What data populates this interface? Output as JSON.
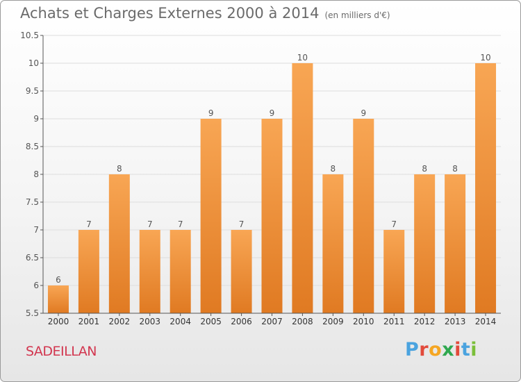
{
  "header": {
    "title": "Achats et Charges Externes 2000 à 2014",
    "subtitle": "(en milliers d'€)"
  },
  "footer": {
    "commune": "SADEILLAN",
    "logo_text": "Proxiti"
  },
  "colors": {
    "bar_top": "#f8a654",
    "bar_bottom": "#e07a22",
    "axis": "#555555",
    "grid": "#dddddd",
    "title": "#6a6a6a",
    "commune": "#d2364f",
    "logo_letters": [
      "#4aa3df",
      "#e24a3b",
      "#f5a623",
      "#2fa84f",
      "#e24a3b",
      "#4aa3df",
      "#7bbf3a"
    ]
  },
  "chart_data": {
    "type": "bar",
    "title": "Achats et Charges Externes 2000 à 2014",
    "subtitle": "(en milliers d'€)",
    "categories": [
      "2000",
      "2001",
      "2002",
      "2003",
      "2004",
      "2005",
      "2006",
      "2007",
      "2008",
      "2009",
      "2010",
      "2011",
      "2012",
      "2013",
      "2014"
    ],
    "values": [
      6,
      7,
      8,
      7,
      7,
      9,
      7,
      9,
      10,
      8,
      9,
      7,
      8,
      8,
      10
    ],
    "ylim": [
      5.5,
      10.5
    ],
    "yticks": [
      5.5,
      6,
      6.5,
      7,
      7.5,
      8,
      8.5,
      9,
      9.5,
      10,
      10.5
    ],
    "grid": true,
    "xlabel": "",
    "ylabel": ""
  }
}
